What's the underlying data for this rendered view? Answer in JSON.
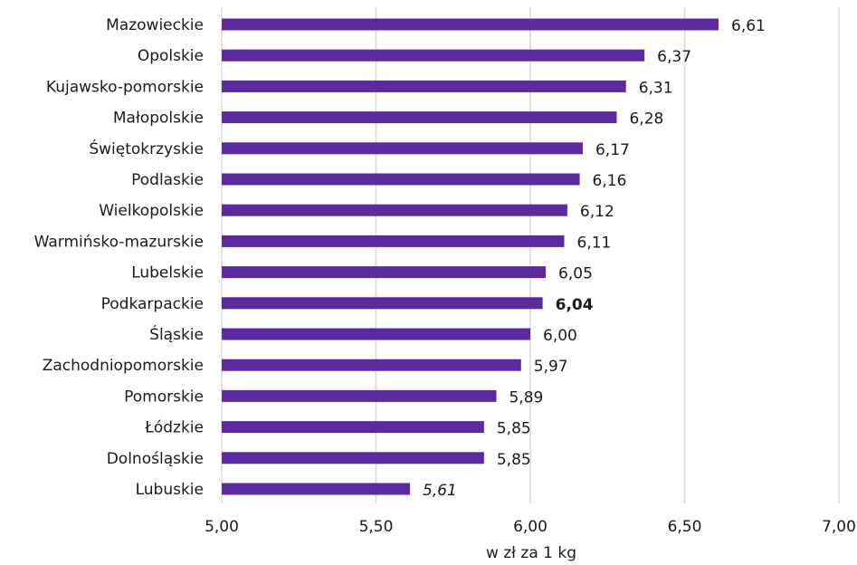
{
  "chart_data": {
    "type": "bar",
    "orientation": "horizontal",
    "categories": [
      "Mazowieckie",
      "Opolskie",
      "Kujawsko-pomorskie",
      "Małopolskie",
      "Świętokrzyskie",
      "Podlaskie",
      "Wielkopolskie",
      "Warmińsko-mazurskie",
      "Lubelskie",
      "Podkarpackie",
      "Śląskie",
      "Zachodniopomorskie",
      "Pomorskie",
      "Łódzkie",
      "Dolnośląskie",
      "Lubuskie"
    ],
    "values": [
      6.61,
      6.37,
      6.31,
      6.28,
      6.17,
      6.16,
      6.12,
      6.11,
      6.05,
      6.04,
      6.0,
      5.97,
      5.89,
      5.85,
      5.85,
      5.61
    ],
    "value_labels": [
      "6,61",
      "6,37",
      "6,31",
      "6,28",
      "6,17",
      "6,16",
      "6,12",
      "6,11",
      "6,05",
      "6,04",
      "6,00",
      "5,97",
      "5,89",
      "5,85",
      "5,85",
      "5,61"
    ],
    "label_styles": [
      "normal",
      "normal",
      "normal",
      "normal",
      "normal",
      "normal",
      "normal",
      "normal",
      "normal",
      "bold",
      "normal",
      "normal",
      "normal",
      "normal",
      "normal",
      "italic"
    ],
    "xticks": [
      5.0,
      5.5,
      6.0,
      6.5,
      7.0
    ],
    "xtick_labels": [
      "5,00",
      "5,50",
      "6,00",
      "6,50",
      "7,00"
    ],
    "xlim": [
      5.0,
      7.0
    ],
    "xlabel": "w zł za 1 kg",
    "grid": "vertical",
    "bar_color": "#5b2a9e"
  }
}
